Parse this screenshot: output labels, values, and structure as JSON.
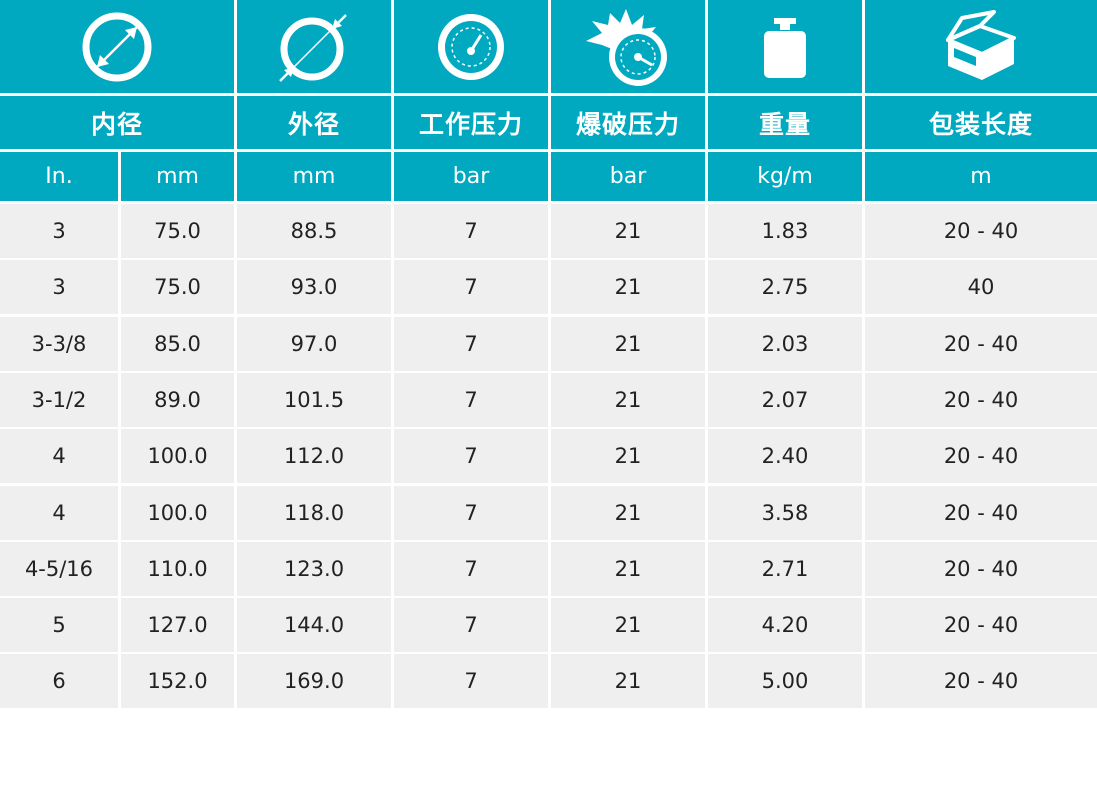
{
  "colors": {
    "header": "#00a9bf",
    "row": "#efefef",
    "divider": "#ffffff",
    "text": "#222222"
  },
  "icons": [
    "inner-diameter-icon",
    "outer-diameter-icon",
    "pressure-gauge-icon",
    "burst-gauge-icon",
    "weight-icon",
    "package-box-icon"
  ],
  "columns": [
    {
      "title": "内径",
      "units": [
        "In.",
        "mm"
      ]
    },
    {
      "title": "外径",
      "units": [
        "mm"
      ]
    },
    {
      "title": "工作压力",
      "units": [
        "bar"
      ]
    },
    {
      "title": "爆破压力",
      "units": [
        "bar"
      ]
    },
    {
      "title": "重量",
      "units": [
        "kg/m"
      ]
    },
    {
      "title": "包装长度",
      "units": [
        "m"
      ]
    }
  ],
  "rows": [
    [
      "3",
      "75.0",
      "88.5",
      "7",
      "21",
      "1.83",
      "20 - 40"
    ],
    [
      "3",
      "75.0",
      "93.0",
      "7",
      "21",
      "2.75",
      "40"
    ],
    [
      "3-3/8",
      "85.0",
      "97.0",
      "7",
      "21",
      "2.03",
      "20 - 40"
    ],
    [
      "3-1/2",
      "89.0",
      "101.5",
      "7",
      "21",
      "2.07",
      "20 - 40"
    ],
    [
      "4",
      "100.0",
      "112.0",
      "7",
      "21",
      "2.40",
      "20 - 40"
    ],
    [
      "4",
      "100.0",
      "118.0",
      "7",
      "21",
      "3.58",
      "20 - 40"
    ],
    [
      "4-5/16",
      "110.0",
      "123.0",
      "7",
      "21",
      "2.71",
      "20 - 40"
    ],
    [
      "5",
      "127.0",
      "144.0",
      "7",
      "21",
      "4.20",
      "20 - 40"
    ],
    [
      "6",
      "152.0",
      "169.0",
      "7",
      "21",
      "5.00",
      "20 - 40"
    ]
  ]
}
